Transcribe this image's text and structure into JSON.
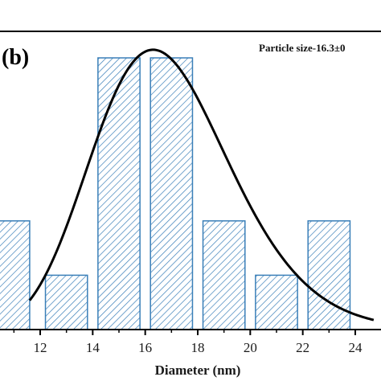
{
  "chart_data": {
    "type": "bar",
    "panel_label": "(b)",
    "annotation": "Particle size-16.3±0",
    "xlabel": "Diameter (nm)",
    "ylabel": "",
    "x_ticks": [
      12,
      14,
      16,
      18,
      20,
      22,
      24
    ],
    "xlim": [
      10.6,
      24.8
    ],
    "ylim": [
      0,
      5.2
    ],
    "bins": [
      {
        "x0": 10,
        "x1": 11.6,
        "count": 2
      },
      {
        "x0": 12.2,
        "x1": 13.8,
        "count": 1
      },
      {
        "x0": 14.2,
        "x1": 15.8,
        "count": 5
      },
      {
        "x0": 16.2,
        "x1": 17.8,
        "count": 5
      },
      {
        "x0": 18.2,
        "x1": 19.8,
        "count": 2
      },
      {
        "x0": 20.2,
        "x1": 21.8,
        "count": 1
      },
      {
        "x0": 22.2,
        "x1": 23.8,
        "count": 2
      }
    ],
    "fit_curve": {
      "type": "lognormal",
      "peak_x": 16.3,
      "peak_y": 5.15,
      "x_range": [
        11.6,
        24.7
      ]
    },
    "colors": {
      "bar_edge": "#3a7fb8",
      "hatch": "#3a7fb8",
      "curve": "#000000",
      "axis": "#000000"
    },
    "grid": false,
    "legend": "none"
  }
}
